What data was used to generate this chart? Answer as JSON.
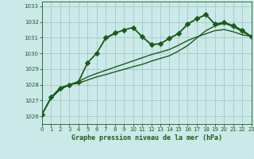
{
  "background_color": "#cce9e9",
  "grid_color": "#aacccc",
  "line_color": "#1a5c1a",
  "title": "Graphe pression niveau de la mer (hPa)",
  "xlim": [
    0,
    23
  ],
  "ylim": [
    1025.5,
    1033.3
  ],
  "yticks": [
    1026,
    1027,
    1028,
    1029,
    1030,
    1031,
    1032,
    1033
  ],
  "xticks": [
    0,
    1,
    2,
    3,
    4,
    5,
    6,
    7,
    8,
    9,
    10,
    11,
    12,
    13,
    14,
    15,
    16,
    17,
    18,
    19,
    20,
    21,
    22,
    23
  ],
  "series": [
    {
      "x": [
        0,
        1,
        2,
        3,
        4,
        5,
        6,
        7,
        8,
        9,
        10,
        11,
        12,
        13,
        14,
        15,
        16,
        17,
        18,
        19,
        20,
        21,
        22,
        23
      ],
      "y": [
        1026.1,
        1027.2,
        1027.8,
        1028.0,
        1028.15,
        1029.4,
        1030.0,
        1030.95,
        1031.25,
        1031.5,
        1031.65,
        1031.05,
        1030.55,
        1030.6,
        1030.95,
        1031.25,
        1031.85,
        1032.2,
        1032.45,
        1031.85,
        1031.95,
        1031.7,
        1031.4,
        1031.05
      ],
      "marker": "+",
      "markersize": 4.5,
      "linewidth": 1.0
    },
    {
      "x": [
        0,
        1,
        2,
        3,
        4,
        5,
        6,
        7,
        8,
        9,
        10,
        11,
        12,
        13,
        14,
        15,
        16,
        17,
        18,
        19,
        20,
        21,
        22,
        23
      ],
      "y": [
        1026.1,
        1027.15,
        1027.7,
        1028.0,
        1028.1,
        1028.3,
        1028.5,
        1028.65,
        1028.82,
        1028.98,
        1029.15,
        1029.3,
        1029.5,
        1029.68,
        1029.85,
        1030.15,
        1030.5,
        1030.98,
        1031.45,
        1031.75,
        1031.92,
        1031.72,
        1031.38,
        1031.08
      ],
      "marker": null,
      "markersize": 0,
      "linewidth": 1.0
    },
    {
      "x": [
        0,
        1,
        2,
        3,
        4,
        5,
        6,
        7,
        8,
        9,
        10,
        11,
        12,
        13,
        14,
        15,
        16,
        17,
        18,
        19,
        20,
        21,
        22,
        23
      ],
      "y": [
        1026.1,
        1027.15,
        1027.7,
        1028.0,
        1028.2,
        1028.5,
        1028.72,
        1028.92,
        1029.12,
        1029.32,
        1029.52,
        1029.72,
        1029.92,
        1030.08,
        1030.25,
        1030.52,
        1030.82,
        1031.05,
        1031.25,
        1031.45,
        1031.52,
        1031.38,
        1031.18,
        1031.08
      ],
      "marker": null,
      "markersize": 0,
      "linewidth": 1.0
    },
    {
      "x": [
        0,
        1,
        2,
        3,
        4,
        5,
        6,
        7,
        8,
        9,
        10,
        11,
        12,
        13,
        14,
        15,
        16,
        17,
        18,
        19,
        20,
        21,
        22,
        23
      ],
      "y": [
        1026.1,
        1027.2,
        1027.8,
        1028.0,
        1028.2,
        1029.38,
        1030.0,
        1031.0,
        1031.3,
        1031.5,
        1031.65,
        1031.08,
        1030.58,
        1030.62,
        1030.98,
        1031.28,
        1031.88,
        1032.22,
        1032.48,
        1031.88,
        1031.98,
        1031.78,
        1031.48,
        1031.08
      ],
      "marker": "D",
      "markersize": 3.0,
      "linewidth": 1.0
    }
  ]
}
